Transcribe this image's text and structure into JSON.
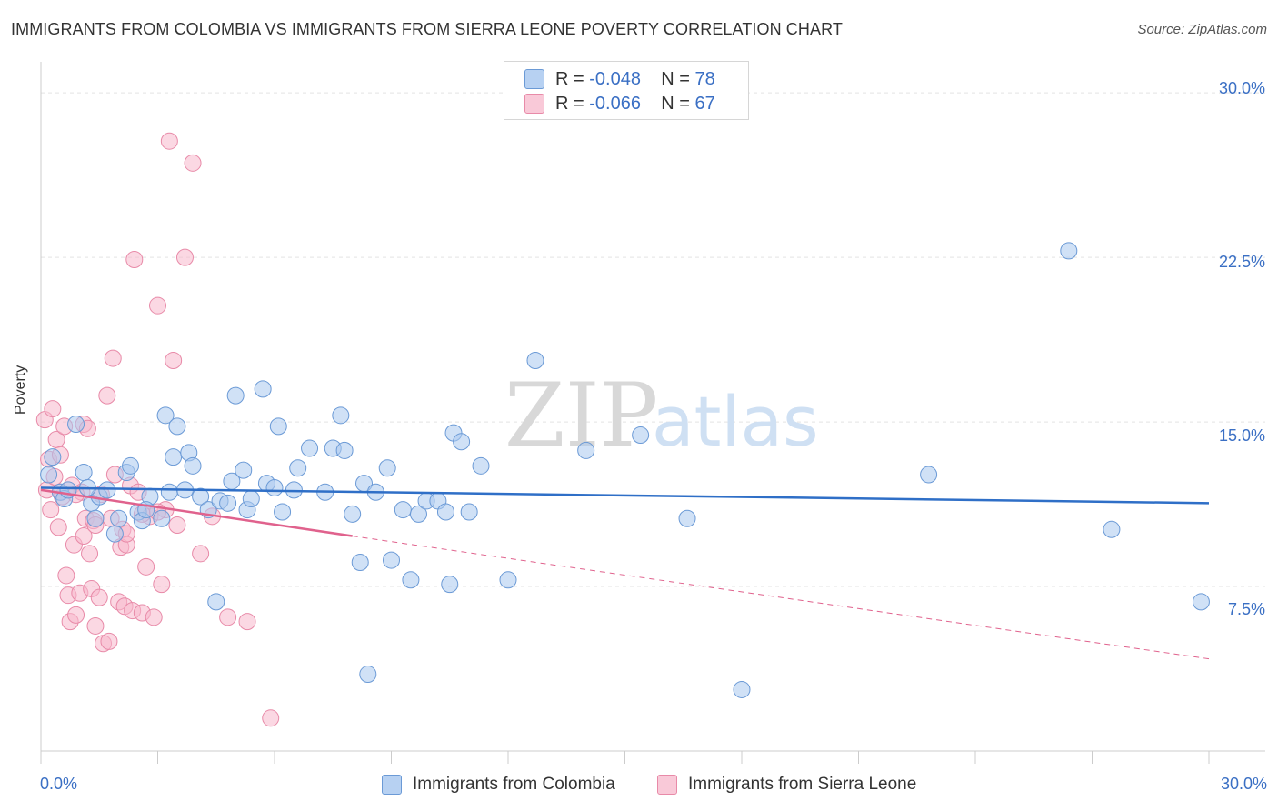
{
  "title": "IMMIGRANTS FROM COLOMBIA VS IMMIGRANTS FROM SIERRA LEONE POVERTY CORRELATION CHART",
  "source": "Source: ZipAtlas.com",
  "watermark": {
    "zip": "ZIP",
    "atlas": "atlas"
  },
  "legend": {
    "row1": {
      "r_label": "R =",
      "r_value": "-0.048",
      "n_label": "N =",
      "n_value": "78"
    },
    "row2": {
      "r_label": "R =",
      "r_value": "-0.066",
      "n_label": "N =",
      "n_value": "67"
    }
  },
  "colors": {
    "colombia_fill": "#a9c8ef",
    "colombia_stroke": "#6b9ad6",
    "colombia_line": "#2f6fc7",
    "sierra_fill": "#f7b8cc",
    "sierra_stroke": "#e88aa8",
    "sierra_line": "#e0628d",
    "tick_text": "#3a6fc4",
    "grid": "#e3e3e3"
  },
  "chart_data": {
    "type": "scatter",
    "title": "IMMIGRANTS FROM COLOMBIA VS IMMIGRANTS FROM SIERRA LEONE POVERTY CORRELATION CHART",
    "xlabel": "",
    "ylabel": "Poverty",
    "xlim": [
      0,
      30
    ],
    "ylim": [
      0,
      31
    ],
    "x_tick_labels": [
      "0.0%",
      "30.0%"
    ],
    "y_ticks": [
      7.5,
      15.0,
      22.5,
      30.0
    ],
    "y_tick_labels": [
      "7.5%",
      "15.0%",
      "22.5%",
      "30.0%"
    ],
    "grid": true,
    "legend_position": "top-center",
    "series": [
      {
        "name": "Immigrants from Colombia",
        "r": -0.048,
        "n": 78,
        "trend": {
          "x": [
            0,
            30
          ],
          "y": [
            12.0,
            11.3
          ]
        },
        "points": [
          [
            0.2,
            12.6
          ],
          [
            0.3,
            13.4
          ],
          [
            0.5,
            11.8
          ],
          [
            0.6,
            11.5
          ],
          [
            0.7,
            11.9
          ],
          [
            0.9,
            14.9
          ],
          [
            1.1,
            12.7
          ],
          [
            1.3,
            11.3
          ],
          [
            1.4,
            10.6
          ],
          [
            1.5,
            11.6
          ],
          [
            1.7,
            11.9
          ],
          [
            1.9,
            9.9
          ],
          [
            2.0,
            10.6
          ],
          [
            2.2,
            12.7
          ],
          [
            2.3,
            13.0
          ],
          [
            2.5,
            10.9
          ],
          [
            2.6,
            10.5
          ],
          [
            2.8,
            11.6
          ],
          [
            3.1,
            10.6
          ],
          [
            3.2,
            15.3
          ],
          [
            3.3,
            11.8
          ],
          [
            3.4,
            13.4
          ],
          [
            3.5,
            14.8
          ],
          [
            3.7,
            11.9
          ],
          [
            3.8,
            13.6
          ],
          [
            3.9,
            13.0
          ],
          [
            4.1,
            11.6
          ],
          [
            4.3,
            11.0
          ],
          [
            4.5,
            6.8
          ],
          [
            4.6,
            11.4
          ],
          [
            4.8,
            11.3
          ],
          [
            4.9,
            12.3
          ],
          [
            5.0,
            16.2
          ],
          [
            5.2,
            12.8
          ],
          [
            5.3,
            11.0
          ],
          [
            5.4,
            11.5
          ],
          [
            5.7,
            16.5
          ],
          [
            5.8,
            12.2
          ],
          [
            6.0,
            12.0
          ],
          [
            6.1,
            14.8
          ],
          [
            6.2,
            10.9
          ],
          [
            6.5,
            11.9
          ],
          [
            6.6,
            12.9
          ],
          [
            6.9,
            13.8
          ],
          [
            7.3,
            11.8
          ],
          [
            7.5,
            13.8
          ],
          [
            7.7,
            15.3
          ],
          [
            7.8,
            13.7
          ],
          [
            8.0,
            10.8
          ],
          [
            8.2,
            8.6
          ],
          [
            8.3,
            12.2
          ],
          [
            8.4,
            3.5
          ],
          [
            8.6,
            11.8
          ],
          [
            8.9,
            12.9
          ],
          [
            9.0,
            8.7
          ],
          [
            9.3,
            11.0
          ],
          [
            9.5,
            7.8
          ],
          [
            9.7,
            10.8
          ],
          [
            9.9,
            11.4
          ],
          [
            10.2,
            11.4
          ],
          [
            10.4,
            10.9
          ],
          [
            10.5,
            7.6
          ],
          [
            10.6,
            14.5
          ],
          [
            10.8,
            14.1
          ],
          [
            11.0,
            10.9
          ],
          [
            11.3,
            13.0
          ],
          [
            12.0,
            7.8
          ],
          [
            12.7,
            17.8
          ],
          [
            14.0,
            13.7
          ],
          [
            15.4,
            14.4
          ],
          [
            16.6,
            10.6
          ],
          [
            18.0,
            2.8
          ],
          [
            22.8,
            12.6
          ],
          [
            26.4,
            22.8
          ],
          [
            27.5,
            10.1
          ],
          [
            29.8,
            6.8
          ],
          [
            1.2,
            12.0
          ],
          [
            2.7,
            11.0
          ]
        ]
      },
      {
        "name": "Immigrants from Sierra Leone",
        "r": -0.066,
        "n": 67,
        "trend": {
          "x": [
            0,
            8.0
          ],
          "y": [
            11.9,
            9.8
          ]
        },
        "trend_dashed": {
          "x": [
            8.0,
            30
          ],
          "y": [
            9.8,
            4.2
          ]
        },
        "points": [
          [
            0.1,
            15.1
          ],
          [
            0.15,
            11.9
          ],
          [
            0.2,
            13.3
          ],
          [
            0.25,
            11.0
          ],
          [
            0.3,
            15.6
          ],
          [
            0.35,
            12.5
          ],
          [
            0.4,
            14.2
          ],
          [
            0.45,
            10.2
          ],
          [
            0.5,
            13.5
          ],
          [
            0.55,
            11.6
          ],
          [
            0.6,
            14.8
          ],
          [
            0.65,
            8.0
          ],
          [
            0.7,
            7.1
          ],
          [
            0.75,
            5.9
          ],
          [
            0.8,
            12.1
          ],
          [
            0.85,
            9.4
          ],
          [
            0.9,
            6.2
          ],
          [
            1.0,
            7.2
          ],
          [
            1.05,
            11.8
          ],
          [
            1.1,
            14.9
          ],
          [
            1.15,
            10.6
          ],
          [
            1.2,
            14.7
          ],
          [
            1.25,
            9.0
          ],
          [
            1.3,
            7.4
          ],
          [
            1.35,
            10.5
          ],
          [
            1.4,
            5.7
          ],
          [
            1.5,
            7.0
          ],
          [
            1.55,
            11.7
          ],
          [
            1.6,
            4.9
          ],
          [
            1.7,
            16.2
          ],
          [
            1.75,
            5.0
          ],
          [
            1.8,
            10.6
          ],
          [
            1.85,
            17.9
          ],
          [
            1.9,
            12.6
          ],
          [
            2.0,
            6.8
          ],
          [
            2.05,
            9.3
          ],
          [
            2.1,
            10.1
          ],
          [
            2.15,
            6.6
          ],
          [
            2.2,
            9.4
          ],
          [
            2.3,
            12.1
          ],
          [
            2.35,
            6.4
          ],
          [
            2.4,
            22.4
          ],
          [
            2.5,
            11.8
          ],
          [
            2.6,
            6.3
          ],
          [
            2.7,
            8.4
          ],
          [
            2.8,
            10.7
          ],
          [
            2.9,
            6.1
          ],
          [
            3.0,
            20.3
          ],
          [
            3.1,
            7.6
          ],
          [
            3.2,
            11.0
          ],
          [
            3.3,
            27.8
          ],
          [
            3.4,
            17.8
          ],
          [
            3.5,
            10.3
          ],
          [
            3.7,
            22.5
          ],
          [
            3.9,
            26.8
          ],
          [
            4.1,
            9.0
          ],
          [
            4.4,
            10.7
          ],
          [
            4.8,
            6.1
          ],
          [
            5.3,
            5.9
          ],
          [
            5.9,
            1.5
          ],
          [
            0.5,
            11.8
          ],
          [
            0.9,
            11.7
          ],
          [
            1.1,
            9.8
          ],
          [
            1.4,
            10.3
          ],
          [
            2.2,
            9.9
          ],
          [
            2.6,
            10.8
          ],
          [
            3.0,
            10.9
          ]
        ]
      }
    ]
  },
  "bottom_legend": {
    "item1": "Immigrants from Colombia",
    "item2": "Immigrants from Sierra Leone"
  }
}
